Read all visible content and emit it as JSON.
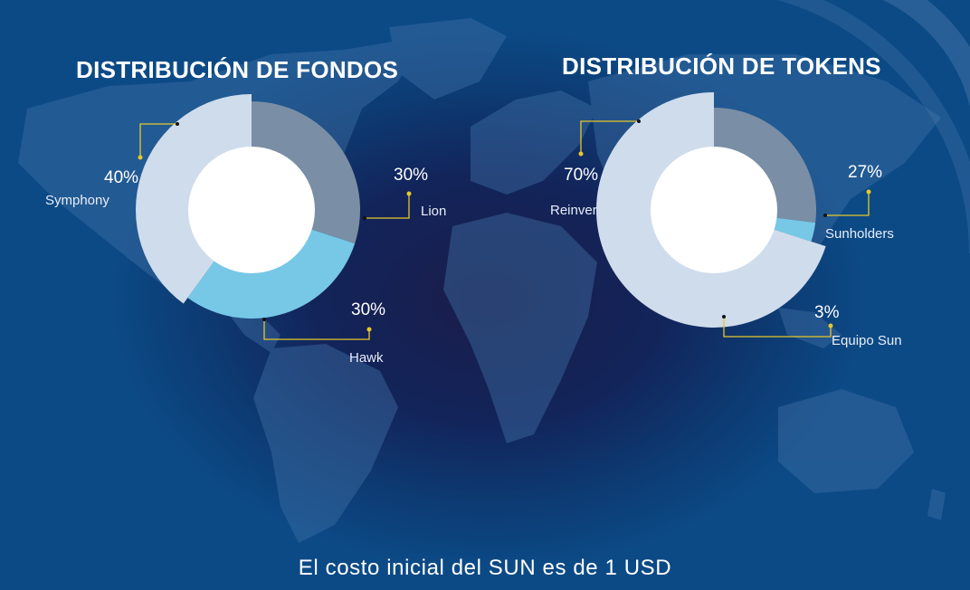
{
  "footer_text": "El costo inicial del SUN es de 1 USD",
  "colors": {
    "dark_slice": "#7a8ea5",
    "light_slice": "#cfdcec",
    "blue_slice": "#76c8e6",
    "leader_line": "#e6c82a",
    "center": "#ffffff"
  },
  "chart_data": [
    {
      "type": "pie",
      "title": "DISTRIBUCIÓN DE FONDOS",
      "slices": [
        {
          "label": "Lion",
          "value": 30,
          "value_label": "30%"
        },
        {
          "label": "Hawk",
          "value": 30,
          "value_label": "30%"
        },
        {
          "label": "Symphony",
          "value": 40,
          "value_label": "40%"
        }
      ]
    },
    {
      "type": "pie",
      "title": "DISTRIBUCIÓN DE TOKENS",
      "slices": [
        {
          "label": "Sunholders",
          "value": 27,
          "value_label": "27%"
        },
        {
          "label": "Equipo Sun",
          "value": 3,
          "value_label": "3%"
        },
        {
          "label": "Reinver",
          "value": 70,
          "value_label": "70%"
        }
      ]
    }
  ]
}
